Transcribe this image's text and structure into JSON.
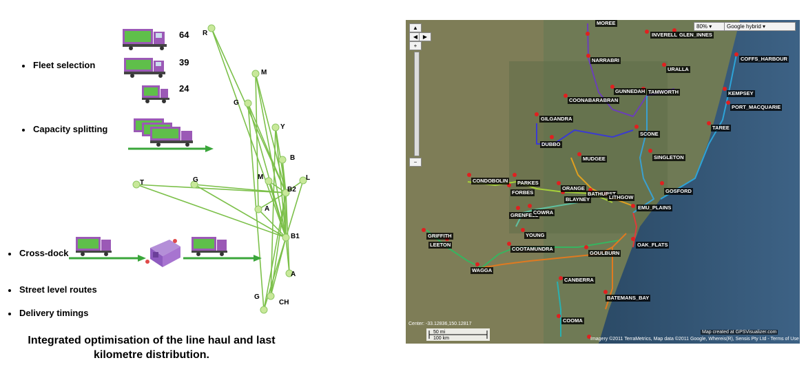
{
  "left": {
    "bullets": [
      {
        "label": "Fleet selection"
      },
      {
        "label": "Capacity splitting"
      },
      {
        "label": "Cross-dock"
      },
      {
        "label": "Street level routes"
      },
      {
        "label": "Delivery timings"
      }
    ],
    "fleet_counts": [
      "64",
      "39",
      "24"
    ],
    "caption_line1": "Integrated optimisation of the line haul and last",
    "caption_line2": "kilometre distribution.",
    "network_nodes": [
      "R",
      "M",
      "G",
      "Y",
      "B",
      "M",
      "B2",
      "L",
      "T",
      "G",
      "A",
      "B1",
      "A",
      "G",
      "CH"
    ],
    "colors": {
      "line": "#7cc04a",
      "node": "#c8e89a",
      "truck": "#9b59b6",
      "arrow": "#3aa63a"
    }
  },
  "map": {
    "zoom_select": "80%",
    "layer_select": "Google hybrid",
    "cities": [
      "MOREE",
      "INVERELL",
      "GLEN_INNES",
      "NARRABRI",
      "COFFS_HARBOUR",
      "GUNNEDAH",
      "URALLA",
      "TAMWORTH",
      "KEMPSEY",
      "COONABARABRAN",
      "PORT_MACQUARIE",
      "GILGANDRA",
      "DUBBO",
      "SCONE",
      "TAREE",
      "MUDGEE",
      "SINGLETON",
      "CONDOBOLIN",
      "PARKES",
      "ORANGE",
      "FORBES",
      "BATHURST",
      "GOSFORD",
      "BLAYNEY",
      "LITHGOW",
      "EMU_PLAINS",
      "GRENFELL",
      "COWRA",
      "GRIFFITH",
      "YOUNG",
      "LEETON",
      "COOTAMUNDRA",
      "OAK_FLATS",
      "GOULBURN",
      "WAGGA",
      "CANBERRA",
      "BATEMANS_BAY",
      "COOMA"
    ],
    "center_text": "Center: -33.12836,150.12817",
    "credit_text": "Map created at GPSVisualizer.com",
    "copyright_text": "Imagery ©2011 TerraMetrics, Map data ©2011 Google, Whereis(R), Sensis Pty Ltd - Terms of Use",
    "scale_km": "100 km",
    "scale_mi": "50 mi"
  }
}
